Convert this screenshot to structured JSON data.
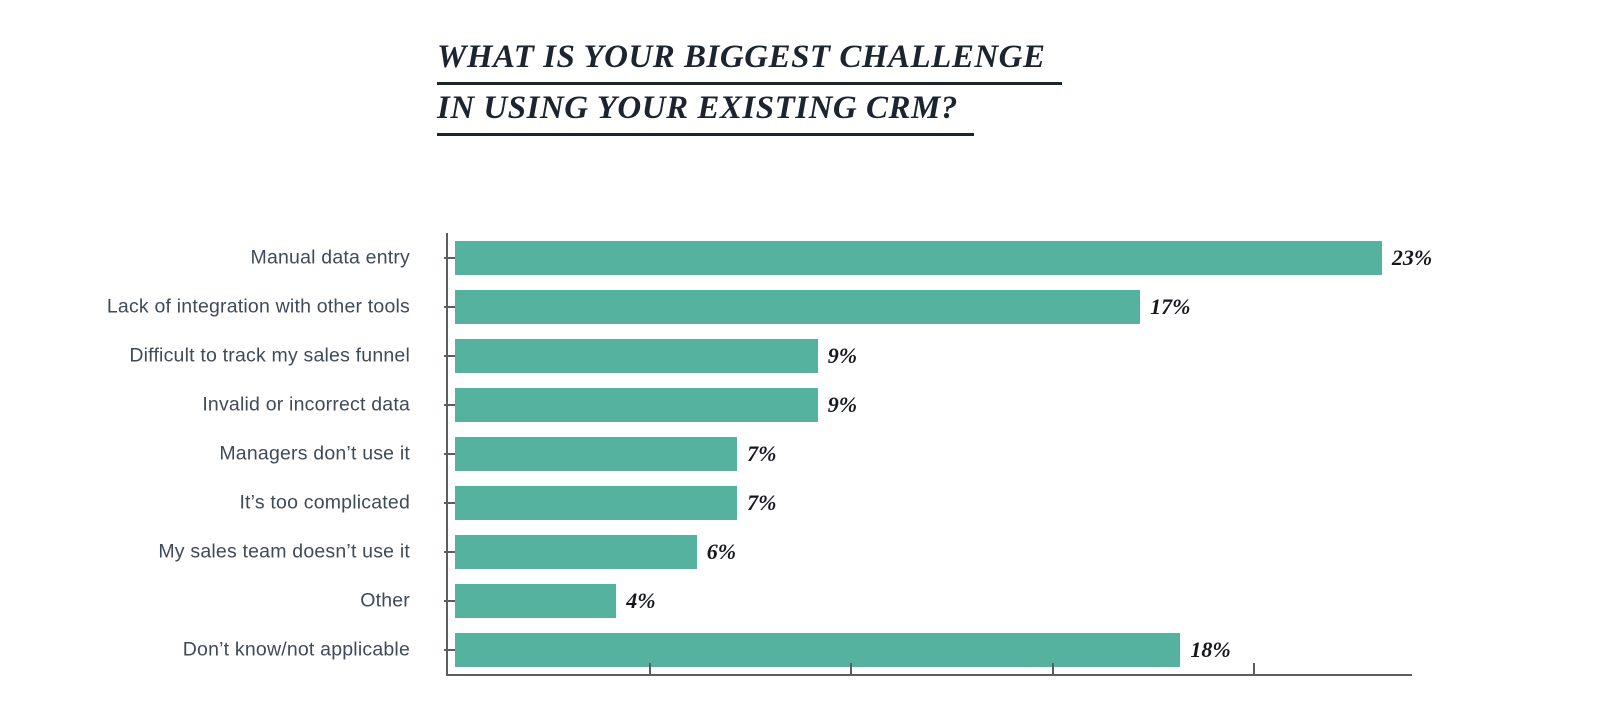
{
  "page": {
    "background_color": "#ffffff"
  },
  "header": {
    "title_line1": "WHAT IS YOUR BIGGEST CHALLENGE",
    "title_line2": "IN USING YOUR EXISTING CRM?"
  },
  "chart_data": {
    "type": "bar",
    "orientation": "horizontal",
    "title": "WHAT IS YOUR BIGGEST CHALLENGE IN USING YOUR EXISTING CRM?",
    "categories": [
      "Manual data entry",
      "Lack of integration with other tools",
      "Difficult to track my sales funnel",
      "Invalid or incorrect data",
      "Managers don’t use it",
      "It’s too complicated",
      "My sales team doesn’t use it",
      "Other",
      "Don’t know/not applicable"
    ],
    "values": [
      23,
      17,
      9,
      9,
      7,
      7,
      6,
      4,
      18
    ],
    "value_labels": [
      "23%",
      "17%",
      "9%",
      "9%",
      "7%",
      "7%",
      "6%",
      "4%",
      "18%"
    ],
    "xlabel": "",
    "ylabel": "",
    "xlim": [
      0,
      24
    ],
    "x_tick_values": [
      0,
      5,
      10,
      15,
      20
    ],
    "x_tick_labels_visible": false,
    "grid": false,
    "legend_position": "none",
    "colors": {
      "bar": "#55b29e",
      "axis": "#5a5e63",
      "category_label": "#3f4a5a",
      "value_label": "#15171c",
      "title": "#1c2430",
      "background": "#ffffff"
    }
  }
}
